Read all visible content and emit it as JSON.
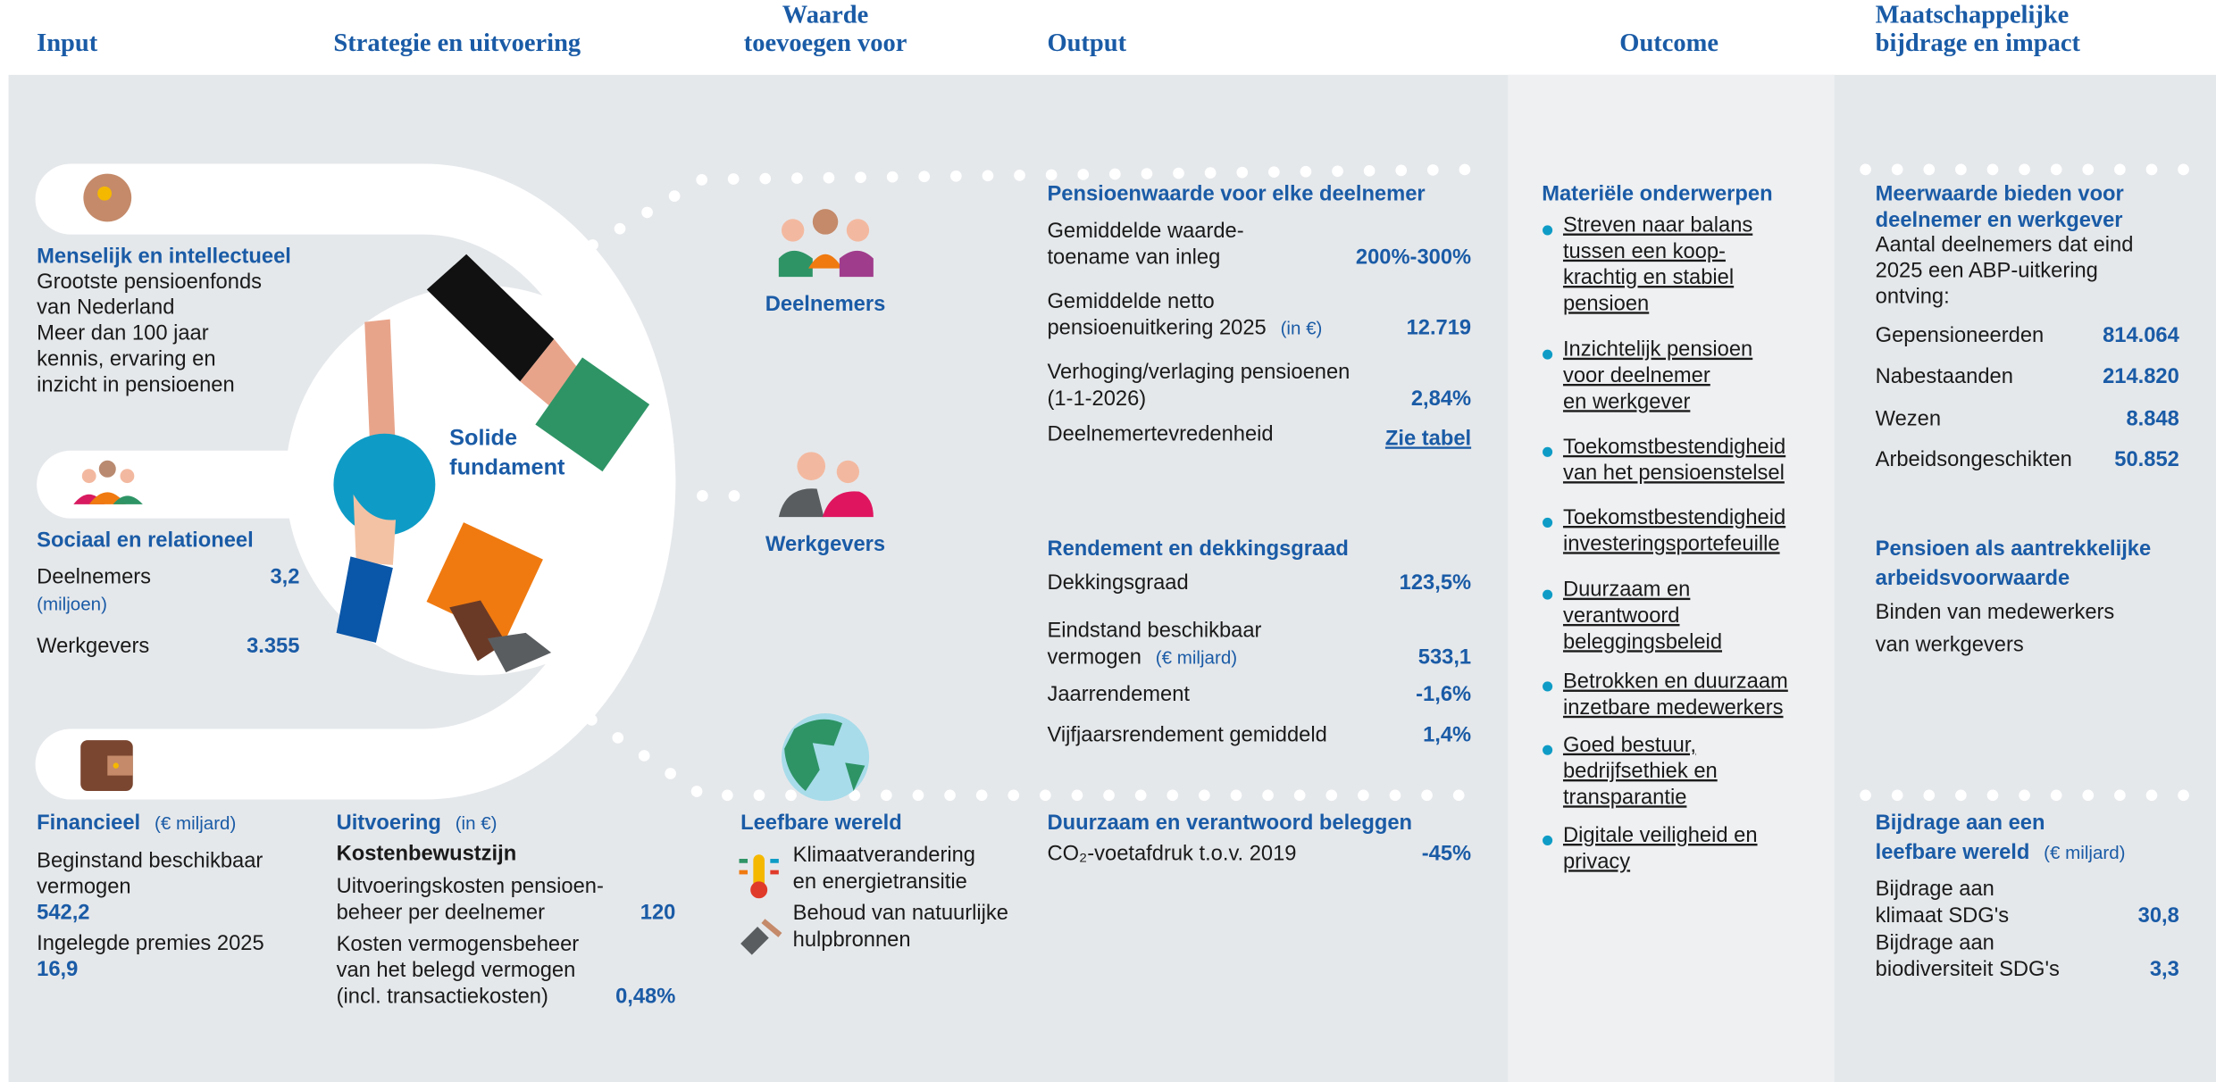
{
  "header": {
    "columns": [
      [
        "Input"
      ],
      [
        "Strategie en uitvoering"
      ],
      [
        "Waarde",
        "toevoegen voor"
      ],
      [
        "Output"
      ],
      [
        "Outcome"
      ],
      [
        "Maatschappelijke",
        "bijdrage en impact"
      ]
    ]
  },
  "input": {
    "human": {
      "title": "Menselijk en intellectueel",
      "lines": [
        "Grootste pensioenfonds",
        "van Nederland",
        "Meer dan 100 jaar",
        "kennis, ervaring en",
        "inzicht in pensioenen"
      ]
    },
    "social": {
      "title": "Sociaal en relationeel",
      "items": [
        {
          "label": "Deelnemers",
          "unit": "(miljoen)",
          "value": "3,2"
        },
        {
          "label": "Werkgevers",
          "value": "3.355"
        }
      ]
    },
    "financial": {
      "title": "Financieel",
      "unit": "(€ miljard)",
      "items": [
        {
          "label": [
            "Beginstand beschikbaar",
            "vermogen"
          ],
          "value": "542,2"
        },
        {
          "label": [
            "Ingelegde premies 2025"
          ],
          "value": "16,9"
        }
      ]
    }
  },
  "center": {
    "label": [
      "Solide",
      "fundament"
    ]
  },
  "strategy": {
    "title": "Uitvoering",
    "unit": "(in €)",
    "subtitle": "Kostenbewustzijn",
    "items": [
      {
        "label": [
          "Uitvoeringskosten pensioen-",
          "beheer per deelnemer"
        ],
        "value": "120"
      },
      {
        "label": [
          "Kosten vermogensbeheer",
          "van het belegd vermogen",
          "(incl. transactiekosten)"
        ],
        "value": "0,48%"
      }
    ]
  },
  "value_for": {
    "groups": [
      "Deelnemers",
      "Werkgevers"
    ],
    "world": {
      "title": "Leefbare wereld",
      "items": [
        [
          "Klimaatverandering",
          "en energietransitie"
        ],
        [
          "Behoud van natuurlijke",
          "hulpbronnen"
        ]
      ]
    }
  },
  "output": {
    "pension": {
      "title": "Pensioenwaarde voor elke deelnemer",
      "items": [
        {
          "label": [
            "Gemiddelde waarde-",
            "toename van inleg"
          ],
          "value": "200%-300%"
        },
        {
          "label": [
            "Gemiddelde netto",
            "pensioenuitkering 2025"
          ],
          "unit": "(in €)",
          "value": "12.719"
        },
        {
          "label": [
            "Verhoging/verlaging pensioenen",
            "(1-1-2026)"
          ],
          "value": "2,84%"
        },
        {
          "label": [
            "Deelnemertevredenheid"
          ],
          "value": "Zie tabel"
        }
      ]
    },
    "return": {
      "title": "Rendement en dekkingsgraad",
      "items": [
        {
          "label": [
            "Dekkingsgraad"
          ],
          "value": "123,5%"
        },
        {
          "label": [
            "Eindstand beschikbaar",
            "vermogen"
          ],
          "unit": "(€ miljard)",
          "value": "533,1"
        },
        {
          "label": [
            "Jaarrendement"
          ],
          "value": "-1,6%"
        },
        {
          "label": [
            "Vijfjaarsrendement gemiddeld"
          ],
          "value": "1,4%"
        }
      ]
    },
    "sustainable": {
      "title": "Duurzaam en verantwoord beleggen",
      "items": [
        {
          "label": [
            "CO₂-voetafdruk t.o.v. 2019"
          ],
          "value": "-45%"
        }
      ]
    }
  },
  "outcome": {
    "title": "Materiële onderwerpen",
    "items": [
      [
        "Streven naar balans",
        "tussen een koop-",
        "krachtig en stabiel",
        "pensioen"
      ],
      [
        "Inzichtelijk pensioen",
        "voor deelnemer",
        "en werkgever"
      ],
      [
        "Toekomstbestendigheid",
        "van het pensioenstelsel"
      ],
      [
        "Toekomstbestendigheid",
        "investeringsportefeuille"
      ],
      [
        "Duurzaam en",
        "verantwoord",
        "beleggingsbeleid"
      ],
      [
        "Betrokken en duurzaam",
        "inzetbare medewerkers"
      ],
      [
        "Goed bestuur,",
        "bedrijfsethiek en",
        "transparantie"
      ],
      [
        "Digitale veiligheid en",
        "privacy"
      ]
    ]
  },
  "impact": {
    "value": {
      "title": [
        "Meerwaarde bieden voor",
        "deelnemer en werkgever"
      ],
      "intro": [
        "Aantal deelnemers dat eind",
        "2025 een ABP-uitkering",
        "ontving:"
      ],
      "items": [
        {
          "label": "Gepensioneerden",
          "value": "814.064"
        },
        {
          "label": "Nabestaanden",
          "value": "214.820"
        },
        {
          "label": "Wezen",
          "value": "8.848"
        },
        {
          "label": "Arbeidsongeschikten",
          "value": "50.852"
        }
      ]
    },
    "attractive": {
      "title": [
        "Pensioen als aantrekkelijke",
        "arbeidsvoorwaarde"
      ],
      "lines": [
        "Binden van medewerkers",
        "van werkgevers"
      ]
    },
    "world": {
      "title": [
        "Bijdrage aan een",
        "leefbare wereld"
      ],
      "unit": "(€ miljard)",
      "items": [
        {
          "label": [
            "Bijdrage aan",
            "klimaat SDG's"
          ],
          "value": "30,8"
        },
        {
          "label": [
            "Bijdrage aan",
            "biodiversiteit SDG's"
          ],
          "value": "3,3"
        }
      ]
    }
  }
}
